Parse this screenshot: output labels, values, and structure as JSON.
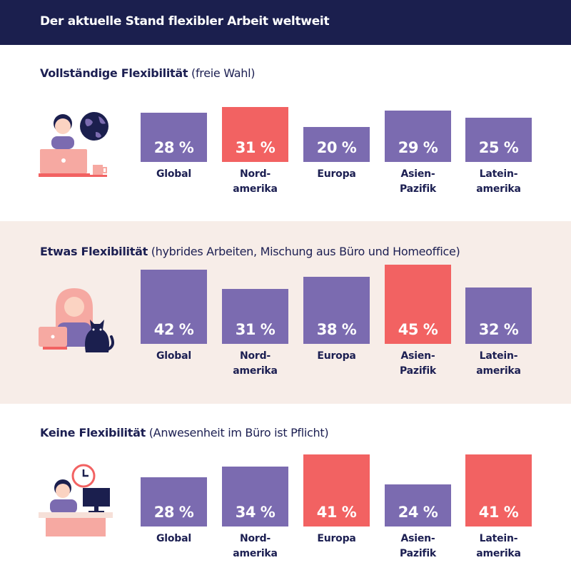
{
  "header": {
    "title": "Der aktuelle Stand flexibler Arbeit weltweit"
  },
  "colors": {
    "header_bg": "#1b1f4e",
    "bar_default": "#7b6bb0",
    "bar_highlight": "#f26262",
    "band_bg": "#f7ede8"
  },
  "sections": [
    {
      "title_bold": "Vollständige Flexibilität",
      "title_rest": "(freie Wahl)",
      "illustration": "person-laptop-globe-icon"
    },
    {
      "title_bold": "Etwas Flexibilität",
      "title_rest": "(hybrides Arbeiten, Mischung aus Büro und Homeoffice)",
      "illustration": "person-laptop-cat-icon"
    },
    {
      "title_bold": "Keine Flexibilität",
      "title_rest": "(Anwesenheit im Büro ist Pflicht)",
      "illustration": "person-office-clock-icon"
    }
  ],
  "chart_data": [
    {
      "type": "bar",
      "title": "Vollständige Flexibilität (freie Wahl)",
      "categories": [
        "Global",
        "Nord-\namerika",
        "Europa",
        "Asien-\nPazifik",
        "Latein-\namerika"
      ],
      "values": [
        28,
        31,
        20,
        29,
        25
      ],
      "value_labels": [
        "28 %",
        "31 %",
        "20 %",
        "29 %",
        "25 %"
      ],
      "highlight": [
        false,
        true,
        false,
        false,
        false
      ]
    },
    {
      "type": "bar",
      "title": "Etwas Flexibilität (hybrides Arbeiten, Mischung aus Büro und Homeoffice)",
      "categories": [
        "Global",
        "Nord-\namerika",
        "Europa",
        "Asien-\nPazifik",
        "Latein-\namerika"
      ],
      "values": [
        42,
        31,
        38,
        45,
        32
      ],
      "value_labels": [
        "42 %",
        "31 %",
        "38 %",
        "45 %",
        "32 %"
      ],
      "highlight": [
        false,
        false,
        false,
        true,
        false
      ]
    },
    {
      "type": "bar",
      "title": "Keine Flexibilität (Anwesenheit im Büro ist Pflicht)",
      "categories": [
        "Global",
        "Nord-\namerika",
        "Europa",
        "Asien-\nPazifik",
        "Latein-\namerika"
      ],
      "values": [
        28,
        34,
        41,
        24,
        41
      ],
      "value_labels": [
        "28 %",
        "34 %",
        "41 %",
        "24 %",
        "41 %"
      ],
      "highlight": [
        false,
        false,
        true,
        false,
        true
      ]
    }
  ]
}
